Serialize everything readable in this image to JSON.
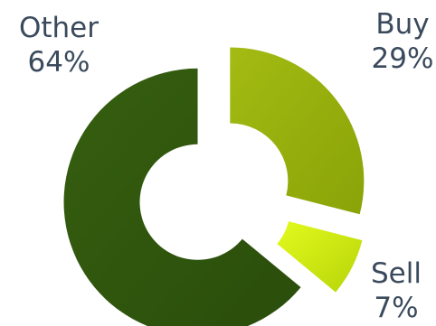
{
  "chart_data": {
    "type": "pie",
    "slices": [
      {
        "label": "Buy",
        "value": 29,
        "value_label": "29%",
        "color": "#9bb30a"
      },
      {
        "label": "Sell",
        "value": 7,
        "value_label": "7%",
        "color": "#d4f00a"
      },
      {
        "label": "Other",
        "value": 64,
        "value_label": "64%",
        "color": "#30560e"
      }
    ],
    "style": "exploded donut",
    "legend": "none"
  }
}
